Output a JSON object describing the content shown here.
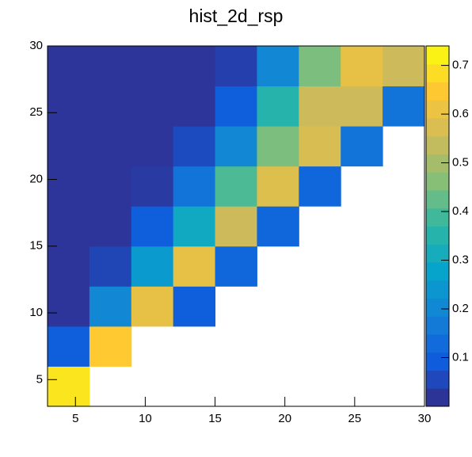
{
  "chart_data": {
    "type": "heatmap",
    "title": "hist_2d_rsp",
    "x_bins": [
      3,
      6,
      9,
      12,
      15,
      18,
      21,
      24,
      27,
      30
    ],
    "y_bins": [
      3,
      6,
      9,
      12,
      15,
      18,
      21,
      24,
      27,
      30
    ],
    "z": [
      [
        0.7,
        null,
        null,
        null,
        null,
        null,
        null,
        null,
        null
      ],
      [
        0.1,
        0.65,
        null,
        null,
        null,
        null,
        null,
        null,
        null
      ],
      [
        0.02,
        0.2,
        0.6,
        0.1,
        null,
        null,
        null,
        null,
        null
      ],
      [
        0.02,
        0.05,
        0.25,
        0.6,
        0.12,
        null,
        null,
        null,
        null
      ],
      [
        0.02,
        0.02,
        0.1,
        0.3,
        0.55,
        0.12,
        null,
        null,
        null
      ],
      [
        0.02,
        0.02,
        0.03,
        0.15,
        0.4,
        0.58,
        0.12,
        null,
        null
      ],
      [
        0.02,
        0.02,
        0.02,
        0.06,
        0.2,
        0.45,
        0.57,
        0.15,
        null
      ],
      [
        0.02,
        0.02,
        0.02,
        0.02,
        0.1,
        0.35,
        0.55,
        0.55,
        0.15
      ],
      [
        0.02,
        0.02,
        0.02,
        0.02,
        0.04,
        0.2,
        0.45,
        0.6,
        0.55
      ]
    ],
    "xlim": [
      3,
      30
    ],
    "xticks": [
      5,
      10,
      15,
      20,
      25,
      30
    ],
    "ylim": [
      3,
      30
    ],
    "yticks": [
      5,
      10,
      15,
      20,
      25,
      30
    ],
    "zlim": [
      0,
      0.74
    ],
    "zticks": [
      0.1,
      0.2,
      0.3,
      0.4,
      0.5,
      0.6,
      0.7
    ],
    "colorscale": [
      "#352a87",
      "#0f5cdd",
      "#1481d6",
      "#06a4ca",
      "#2eb7a4",
      "#87bf77",
      "#d1bb59",
      "#fec832",
      "#f9fb0e"
    ]
  }
}
